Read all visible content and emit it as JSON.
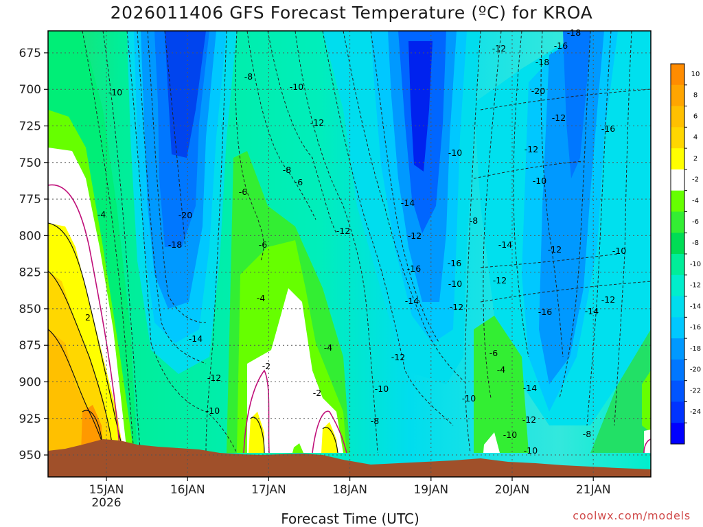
{
  "chart_data": {
    "type": "heatmap",
    "title": "2026011406 GFS Forecast Temperature (ºC) for KROA",
    "xlabel": "Forecast Time (UTC)",
    "credit": "coolwx.com/models",
    "y_axis": {
      "ticks": [
        675,
        700,
        725,
        750,
        775,
        800,
        825,
        850,
        875,
        900,
        925,
        950
      ],
      "range": [
        660,
        965
      ],
      "inverted": true
    },
    "x_axis": {
      "ticks": [
        {
          "label": "15JAN",
          "sub": "2026"
        },
        {
          "label": "16JAN",
          "sub": ""
        },
        {
          "label": "17JAN",
          "sub": ""
        },
        {
          "label": "18JAN",
          "sub": ""
        },
        {
          "label": "19JAN",
          "sub": ""
        },
        {
          "label": "20JAN",
          "sub": ""
        },
        {
          "label": "21JAN",
          "sub": ""
        }
      ]
    },
    "grid": true,
    "colorbar": {
      "labels": [
        10,
        8,
        6,
        4,
        2,
        -2,
        -4,
        -6,
        -8,
        -10,
        -12,
        -14,
        -16,
        -18,
        -20,
        -22,
        -24
      ],
      "colors": [
        "#ff8c00",
        "#ffa500",
        "#ffc000",
        "#ffd700",
        "#ffff00",
        "#ffffff",
        "#66ff00",
        "#33ee33",
        "#00dd55",
        "#00ee99",
        "#00eecc",
        "#00ddee",
        "#00c8ff",
        "#0099ff",
        "#0077ff",
        "#0055ff",
        "#0033ff",
        "#0000ff"
      ]
    },
    "contour_labels": [
      "-10",
      "-8",
      "-10",
      "-12",
      "-12",
      "-16",
      "-18",
      "-8",
      "-6",
      "-6",
      "-4",
      "-20",
      "-18",
      "-14",
      "-12",
      "-10",
      "-8",
      "-6",
      "-4",
      "-2",
      "-2",
      "-4",
      "-12",
      "-20",
      "-18",
      "-16",
      "-14",
      "-16",
      "-12",
      "-10",
      "-12",
      "-14",
      "-12",
      "-10",
      "-12",
      "-14",
      "-16",
      "-14",
      "-12",
      "-16",
      "-12",
      "-12",
      "-10",
      "-12",
      "-10",
      "-10",
      "-8",
      "-6",
      "-4",
      "-10",
      "-10",
      "-8",
      "-14",
      "-12",
      "-10",
      "2"
    ]
  }
}
